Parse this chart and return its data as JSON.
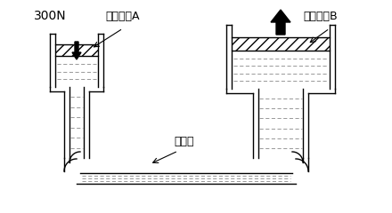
{
  "bg_color": "#ffffff",
  "line_color": "#000000",
  "label_300N": "300N",
  "label_pistonA": "ピストンA",
  "label_pistonB": "ピストンB",
  "label_oil": "オイル",
  "fig_width": 4.4,
  "fig_height": 2.4,
  "dpi": 100
}
